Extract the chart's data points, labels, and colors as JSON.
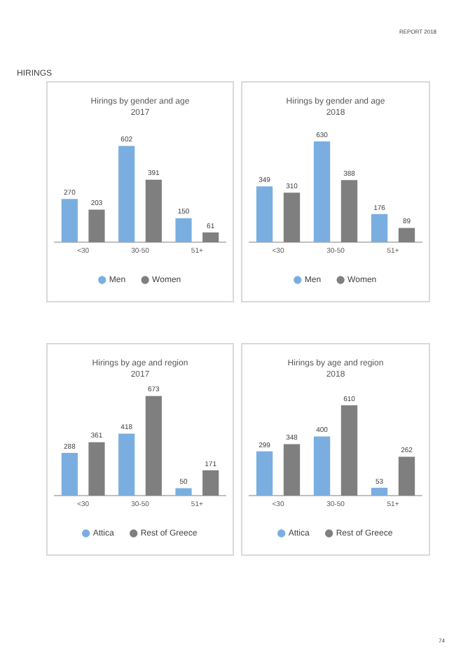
{
  "chart_data": [
    {
      "type": "bar",
      "title": "Hirings by gender and age 2017",
      "categories": [
        "<30",
        "30-50",
        "51+"
      ],
      "annotations": [
        "HIRINGS",
        "REPORT 2018",
        "74"
      ],
      "tick_labels": "x",
      "data_labels": true,
      "legend": "bottom",
      "grid": false,
      "series": [
        {
          "name": "Men",
          "color": "#7aaee0",
          "values": [
            270,
            602,
            150
          ]
        },
        {
          "name": "Women",
          "color": "#7f7f7f",
          "values": [
            203,
            391,
            61
          ]
        }
      ]
    },
    {
      "type": "bar",
      "title": "Hirings by gender and age 2018",
      "categories": [
        "<30",
        "30-50",
        "51+"
      ],
      "tick_labels": "x",
      "data_labels": true,
      "legend": "bottom",
      "grid": false,
      "series": [
        {
          "name": "Men",
          "color": "#7aaee0",
          "values": [
            349,
            630,
            176
          ]
        },
        {
          "name": "Women",
          "color": "#7f7f7f",
          "values": [
            310,
            388,
            89
          ]
        }
      ]
    },
    {
      "type": "bar",
      "title": "Hirings by age and region 2017",
      "categories": [
        "<30",
        "30-50",
        "51+"
      ],
      "tick_labels": "x",
      "data_labels": true,
      "legend": "bottom",
      "grid": false,
      "series": [
        {
          "name": "Attica",
          "color": "#7aaee0",
          "values": [
            288,
            418,
            50
          ]
        },
        {
          "name": "Rest of Greece",
          "color": "#7f7f7f",
          "values": [
            361,
            673,
            171
          ]
        }
      ]
    },
    {
      "type": "bar",
      "title": "Hirings by age and region 2018",
      "categories": [
        "<30",
        "30-50",
        "51+"
      ],
      "tick_labels": "x",
      "data_labels": true,
      "legend": "bottom",
      "grid": false,
      "series": [
        {
          "name": "Attica",
          "color": "#7aaee0",
          "values": [
            299,
            400,
            53
          ]
        },
        {
          "name": "Rest of Greece",
          "color": "#7f7f7f",
          "values": [
            348,
            610,
            262
          ]
        }
      ]
    }
  ]
}
